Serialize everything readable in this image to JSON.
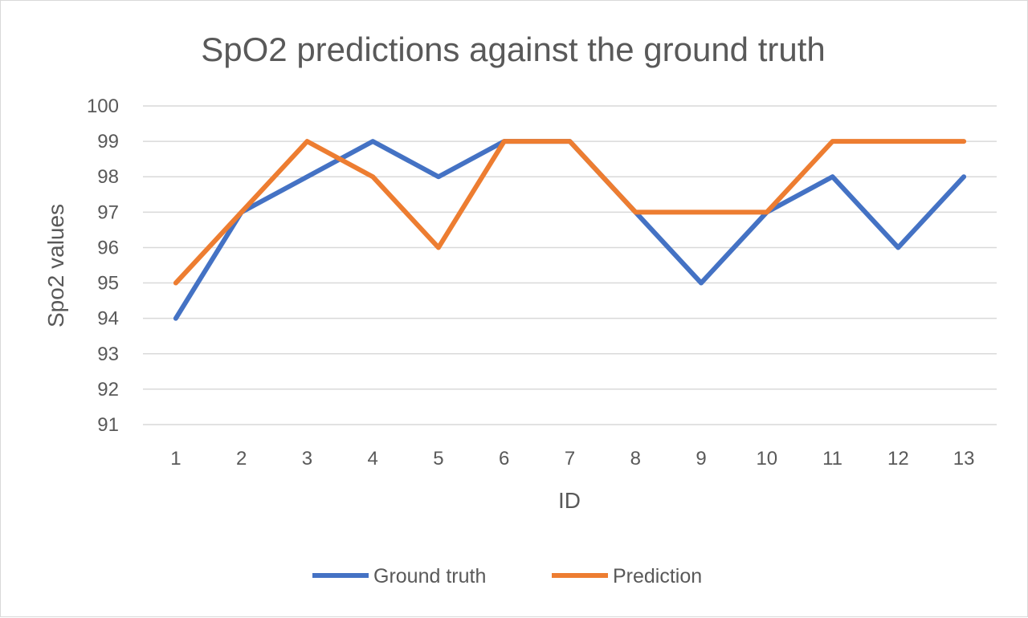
{
  "chart_data": {
    "type": "line",
    "title": "SpO2 predictions against the ground truth",
    "xlabel": "ID",
    "ylabel": "Spo2 values",
    "categories": [
      "1",
      "2",
      "3",
      "4",
      "5",
      "6",
      "7",
      "8",
      "9",
      "10",
      "11",
      "12",
      "13"
    ],
    "ylim": [
      91,
      100
    ],
    "yticks": [
      "91",
      "92",
      "93",
      "94",
      "95",
      "96",
      "97",
      "98",
      "99",
      "100"
    ],
    "grid": true,
    "legend_position": "bottom",
    "series": [
      {
        "name": "Ground truth",
        "color": "#4472C4",
        "values": [
          94,
          97,
          98,
          99,
          98,
          99,
          99,
          97,
          95,
          97,
          98,
          96,
          98
        ]
      },
      {
        "name": "Prediction",
        "color": "#ED7D31",
        "values": [
          95,
          97,
          99,
          98,
          96,
          99,
          99,
          97,
          97,
          97,
          99,
          99,
          99
        ]
      }
    ]
  }
}
